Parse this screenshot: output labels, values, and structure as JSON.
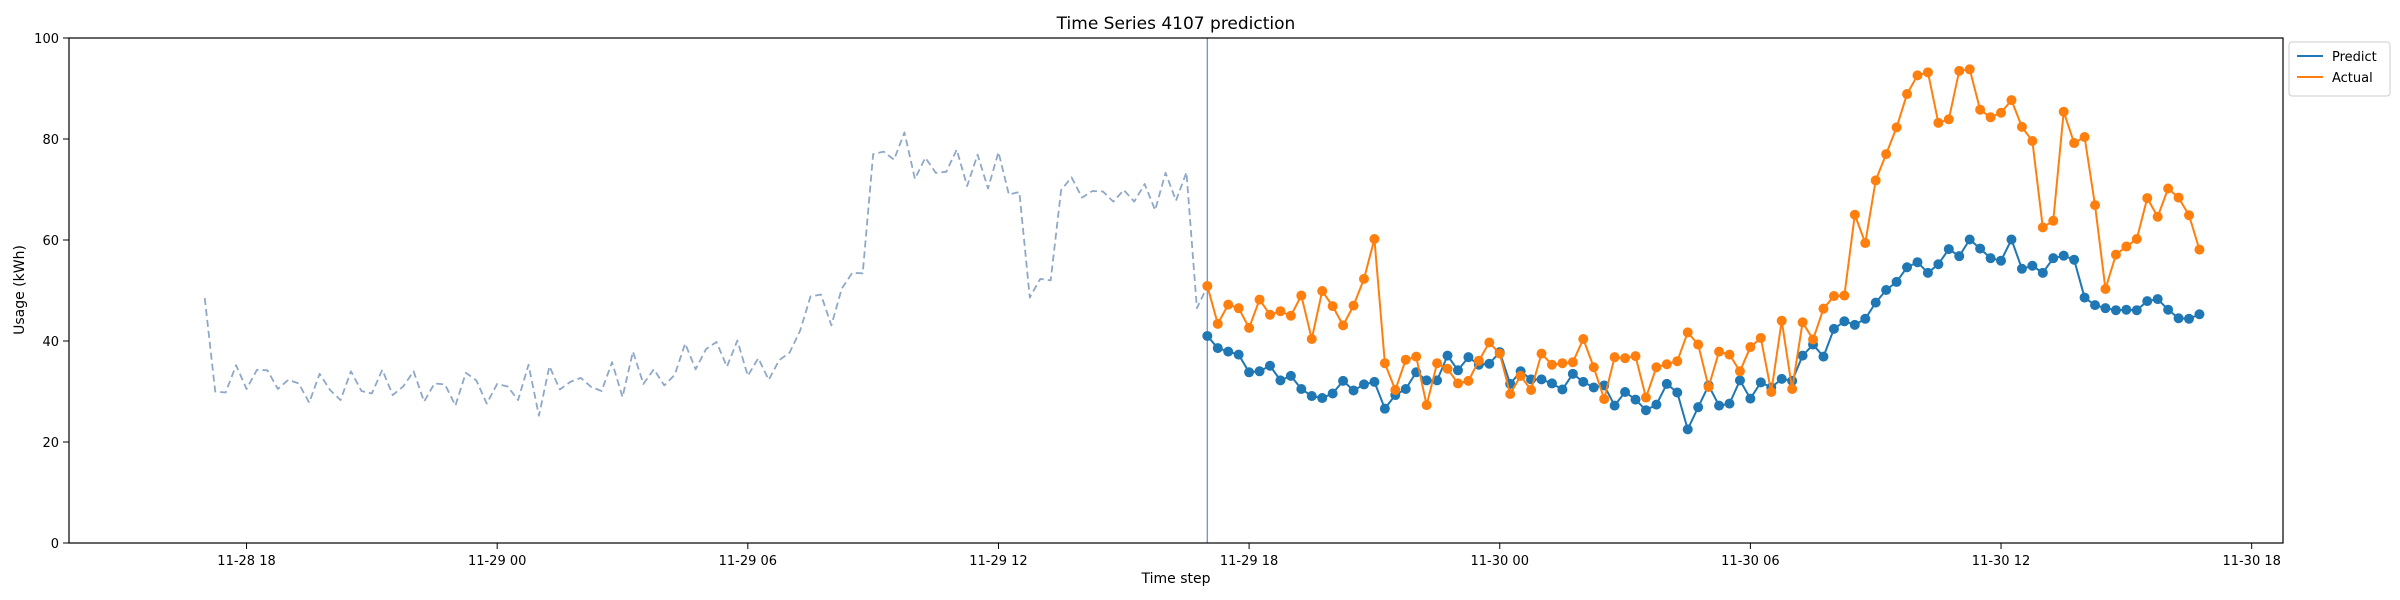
{
  "chart_data": {
    "type": "line",
    "title": "Time Series 4107 prediction",
    "xlabel": "Time step",
    "ylabel": "Usage (kWh)",
    "ylim": [
      0,
      100
    ],
    "y_ticks": [
      0,
      20,
      40,
      60,
      80,
      100
    ],
    "xlim": [
      "2024-11-28 13:45",
      "2024-11-30 18:45"
    ],
    "x_ticks": [
      {
        "t": "2024-11-28 18:00",
        "label": "11-28 18"
      },
      {
        "t": "2024-11-29 00:00",
        "label": "11-29 00"
      },
      {
        "t": "2024-11-29 06:00",
        "label": "11-29 06"
      },
      {
        "t": "2024-11-29 12:00",
        "label": "11-29 12"
      },
      {
        "t": "2024-11-29 18:00",
        "label": "11-29 18"
      },
      {
        "t": "2024-11-30 00:00",
        "label": "11-30 00"
      },
      {
        "t": "2024-11-30 06:00",
        "label": "11-30 06"
      },
      {
        "t": "2024-11-30 12:00",
        "label": "11-30 12"
      },
      {
        "t": "2024-11-30 18:00",
        "label": "11-30 18"
      }
    ],
    "grid": false,
    "legend_position": "top-right",
    "cutoff": "2024-11-29 17:00",
    "series": [
      {
        "name": "",
        "style": "dashed",
        "color": "#8fa8c8",
        "start": "2024-11-28 17:00",
        "step_minutes": 15,
        "values": [
          48.5,
          30,
          29.8,
          35.2,
          30.5,
          34.3,
          34.2,
          30.5,
          32.3,
          31.6,
          27.8,
          33.5,
          30.3,
          28.3,
          34,
          30.1,
          29.6,
          34.3,
          29.3,
          31,
          34,
          28,
          31.6,
          31.4,
          27.2,
          33.7,
          32.2,
          27.6,
          31.5,
          31,
          28.3,
          35.3,
          25.2,
          35,
          30.4,
          31.9,
          32.7,
          30.9,
          30.1,
          35.8,
          28.9,
          37.9,
          31.5,
          34.4,
          31.2,
          33.3,
          39.5,
          34.4,
          38.4,
          39.8,
          34.9,
          40.1,
          33.1,
          36.6,
          32.3,
          36.2,
          37.7,
          42,
          48.8,
          49.2,
          43.1,
          50.4,
          53.5,
          53.4,
          77,
          77.5,
          75.9,
          81.3,
          72.1,
          76.3,
          73.3,
          73.5,
          77.9,
          70.7,
          76.9,
          70.2,
          77.4,
          69,
          69.5,
          48.6,
          52.3,
          52,
          69.9,
          72.4,
          68.4,
          69.7,
          69.6,
          67.6,
          69.9,
          67.6,
          71.1,
          65.9,
          73.3,
          67.8,
          73.4,
          46.5,
          50.8
        ]
      },
      {
        "name": "Predict",
        "style": "solid-markers",
        "color": "#1f77b4",
        "start": "2024-11-29 17:00",
        "step_minutes": 15,
        "values": [
          41,
          38.6,
          37.9,
          37.3,
          33.8,
          34,
          35.1,
          32.2,
          33.1,
          30.5,
          29.1,
          28.7,
          29.6,
          32.1,
          30.2,
          31.4,
          31.9,
          26.6,
          29.3,
          30.5,
          33.8,
          32.2,
          32.2,
          37.1,
          34.2,
          36.8,
          35.3,
          35.5,
          37.8,
          31.5,
          34,
          32.4,
          32.4,
          31.6,
          30.4,
          33.5,
          31.9,
          30.8,
          31.2,
          27.2,
          29.9,
          28.4,
          26.3,
          27.4,
          31.5,
          29.8,
          22.5,
          26.9,
          31.2,
          27.2,
          27.6,
          32.2,
          28.6,
          31.8,
          30.8,
          32.5,
          32.1,
          37.1,
          39.3,
          36.9,
          42.4,
          43.9,
          43.2,
          44.4,
          47.6,
          50.1,
          51.7,
          54.6,
          55.6,
          53.5,
          55.2,
          58.2,
          56.8,
          60.1,
          58.3,
          56.4,
          55.9,
          60.1,
          54.3,
          54.9,
          53.5,
          56.4,
          56.9,
          56.1,
          48.6,
          47.1,
          46.5,
          46.1,
          46.2,
          46.1,
          47.9,
          48.3,
          46.2,
          44.5,
          44.4,
          45.3
        ]
      },
      {
        "name": "Actual",
        "style": "solid-markers",
        "color": "#ff7f0e",
        "start": "2024-11-29 17:00",
        "step_minutes": 15,
        "values": [
          50.9,
          43.4,
          47.2,
          46.5,
          42.6,
          48.2,
          45.2,
          45.9,
          45,
          49,
          40.4,
          49.9,
          46.9,
          43.1,
          47,
          52.3,
          60.2,
          35.6,
          30.3,
          36.3,
          36.9,
          27.3,
          35.6,
          34.5,
          31.6,
          32.1,
          36.1,
          39.7,
          37.5,
          29.5,
          33.1,
          30.3,
          37.5,
          35.3,
          35.6,
          35.8,
          40.4,
          34.8,
          28.5,
          36.8,
          36.6,
          37,
          28.8,
          34.8,
          35.4,
          36,
          41.7,
          39.3,
          30.9,
          37.9,
          37.3,
          34,
          38.8,
          40.6,
          29.9,
          44,
          30.5,
          43.7,
          40.3,
          46.4,
          48.9,
          49,
          65,
          59.4,
          71.8,
          77,
          82.3,
          88.9,
          92.6,
          93.2,
          83.2,
          83.9,
          93.5,
          93.8,
          85.8,
          84.3,
          85.2,
          87.7,
          82.4,
          79.6,
          62.5,
          63.8,
          85.4,
          79.2,
          80.4,
          66.9,
          50.3,
          57.1,
          58.7,
          60.2,
          68.3,
          64.6,
          70.2,
          68.4,
          64.9,
          58.1
        ]
      }
    ]
  }
}
